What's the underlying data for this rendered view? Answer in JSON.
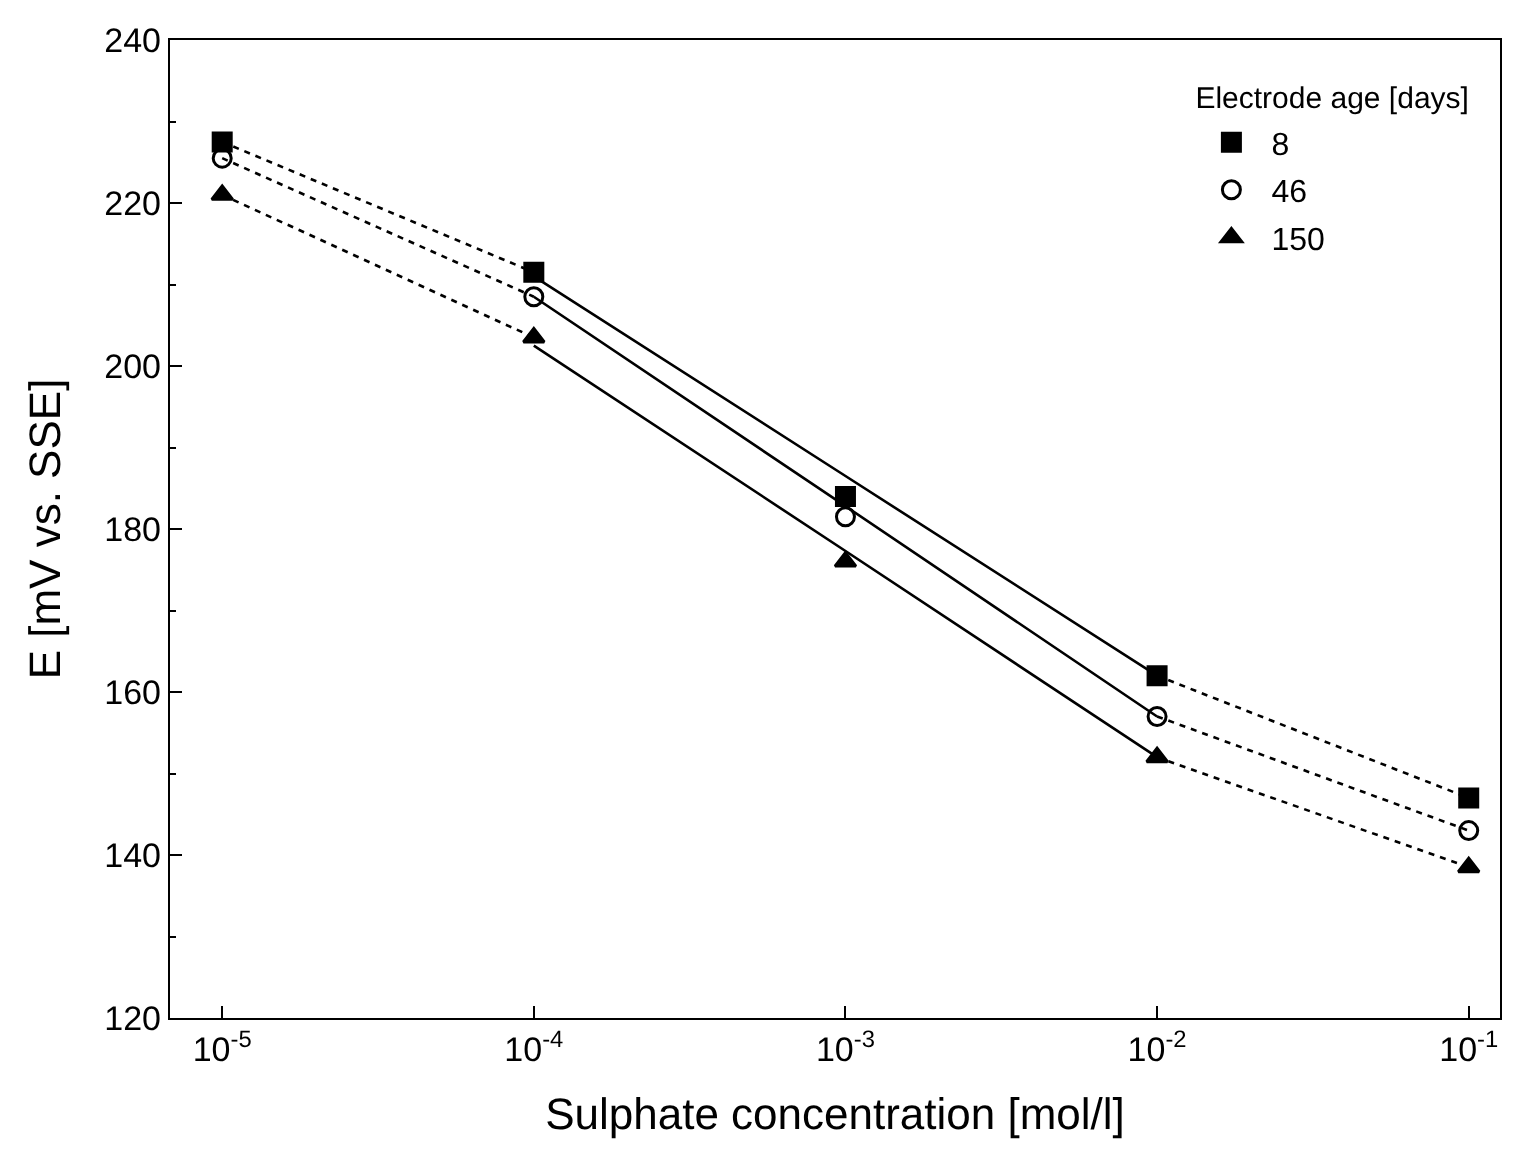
{
  "chart_data": {
    "type": "scatter",
    "xlabel": "Sulphate concentration [mol/l]",
    "ylabel": "E [mV vs. SSE]",
    "legend_title": "Electrode age [days]",
    "x": [
      1e-05,
      0.0001,
      0.001,
      0.01,
      0.1
    ],
    "series": [
      {
        "name": "8",
        "color": "#000000",
        "marker": "square",
        "values": [
          227.5,
          211.5,
          184,
          162,
          147
        ]
      },
      {
        "name": "46",
        "color": "#000000",
        "marker": "circle",
        "values": [
          225.5,
          208.5,
          181.5,
          157,
          143
        ]
      },
      {
        "name": "150",
        "color": "#000000",
        "marker": "triangle",
        "values": [
          221,
          203.5,
          176,
          152,
          138.5
        ]
      },
      {
        "type": "line",
        "color": "#000000",
        "line_style": "solid",
        "marker": "none",
        "values": [
          null,
          211,
          186.5,
          162,
          null
        ]
      },
      {
        "type": "line",
        "color": "#000000",
        "line_style": "solid",
        "marker": "none",
        "values": [
          null,
          208.5,
          182.8,
          157,
          null
        ]
      },
      {
        "type": "line",
        "color": "#000000",
        "line_style": "solid",
        "marker": "none",
        "values": [
          null,
          202.5,
          177.3,
          152,
          null
        ]
      },
      {
        "type": "line",
        "color": "#000000",
        "line_style": "dotted",
        "marker": "none",
        "values": [
          227.5,
          211.5,
          null,
          162,
          147
        ]
      },
      {
        "type": "line",
        "color": "#000000",
        "line_style": "dotted",
        "marker": "none",
        "values": [
          225.5,
          208.5,
          null,
          157,
          143
        ]
      },
      {
        "type": "line",
        "color": "#000000",
        "line_style": "dotted",
        "marker": "none",
        "values": [
          221,
          203.5,
          null,
          152,
          138.5
        ]
      }
    ],
    "log": "x",
    "xlim": [
      6.8e-06,
      0.126
    ],
    "xticks": [
      {
        "value": 1e-05,
        "label": "10$^{-5}$"
      },
      {
        "value": 0.0001,
        "label": "10$^{-4}$"
      },
      {
        "value": 0.001,
        "label": "10$^{-3}$"
      },
      {
        "value": 0.01,
        "label": "10$^{-2}$"
      },
      {
        "value": 0.1,
        "label": "10$^{-1}$"
      }
    ],
    "ylim": [
      120,
      240
    ],
    "yticks": [
      120,
      140,
      160,
      180,
      200,
      220,
      240
    ],
    "legend": "top right"
  }
}
